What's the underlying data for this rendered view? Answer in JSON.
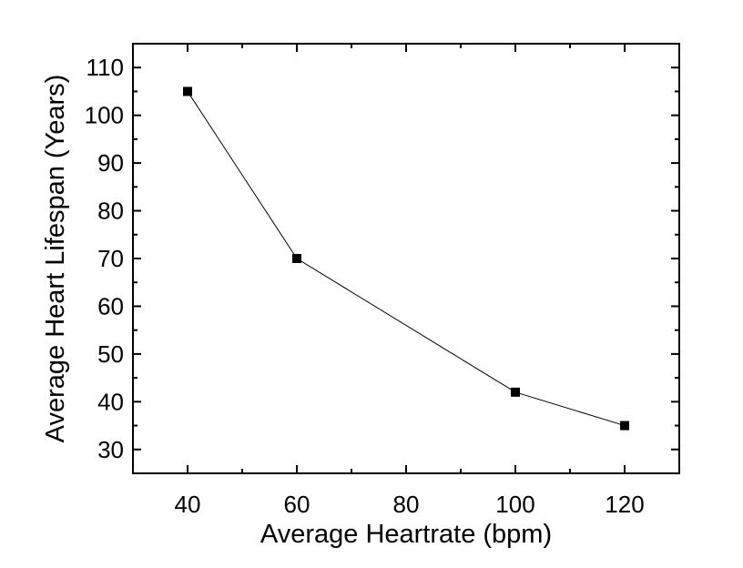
{
  "chart_data": {
    "type": "line",
    "title": "",
    "xlabel": "Average Heartrate (bpm)",
    "ylabel": "Average Heart Lifespan (Years)",
    "xlim": [
      30,
      130
    ],
    "ylim": [
      25,
      115
    ],
    "xticks": [
      40,
      60,
      80,
      100,
      120
    ],
    "xticks_minor": [
      50,
      70,
      90,
      110
    ],
    "yticks": [
      30,
      40,
      50,
      60,
      70,
      80,
      90,
      100,
      110
    ],
    "yticks_minor": [
      35,
      45,
      55,
      65,
      75,
      85,
      95,
      105
    ],
    "grid": false,
    "legend": "none",
    "series": [
      {
        "name": "Heart lifespan",
        "marker": "square",
        "color": "#000000",
        "x": [
          40,
          60,
          100,
          120
        ],
        "y": [
          105,
          70,
          42,
          35
        ]
      }
    ]
  }
}
